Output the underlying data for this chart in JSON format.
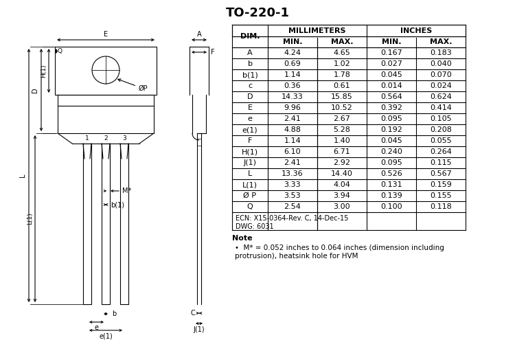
{
  "title": "TO-220-1",
  "table_data": {
    "dims": [
      "A",
      "b",
      "b(1)",
      "c",
      "D",
      "E",
      "e",
      "e(1)",
      "F",
      "H(1)",
      "J(1)",
      "L",
      "L(1)",
      "Ø P",
      "Q"
    ],
    "mm_min": [
      "4.24",
      "0.69",
      "1.14",
      "0.36",
      "14.33",
      "9.96",
      "2.41",
      "4.88",
      "1.14",
      "6.10",
      "2.41",
      "13.36",
      "3.33",
      "3.53",
      "2.54"
    ],
    "mm_max": [
      "4.65",
      "1.02",
      "1.78",
      "0.61",
      "15.85",
      "10.52",
      "2.67",
      "5.28",
      "1.40",
      "6.71",
      "2.92",
      "14.40",
      "4.04",
      "3.94",
      "3.00"
    ],
    "in_min": [
      "0.167",
      "0.027",
      "0.045",
      "0.014",
      "0.564",
      "0.392",
      "0.095",
      "0.192",
      "0.045",
      "0.240",
      "0.095",
      "0.526",
      "0.131",
      "0.139",
      "0.100"
    ],
    "in_max": [
      "0.183",
      "0.040",
      "0.070",
      "0.024",
      "0.624",
      "0.414",
      "0.105",
      "0.208",
      "0.055",
      "0.264",
      "0.115",
      "0.567",
      "0.159",
      "0.155",
      "0.118"
    ]
  },
  "ecn_text": "ECN: X15-0364-Rev. C, 14-Dec-15\nDWG: 6031",
  "note_text": "M* = 0.052 inches to 0.064 inches (dimension including\nprotrusion), heatsink hole for HVM",
  "bg_color": "#ffffff",
  "line_color": "#000000"
}
